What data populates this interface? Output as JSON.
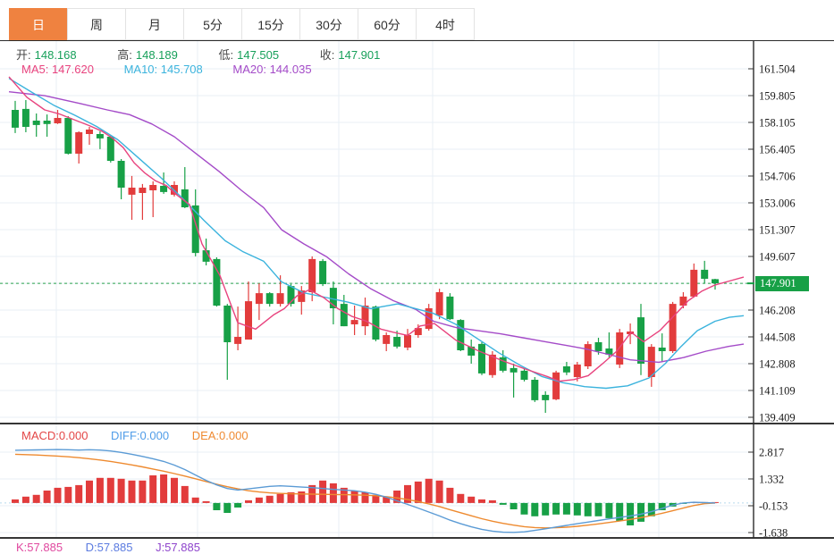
{
  "tabs": {
    "day": "日",
    "week": "周",
    "month": "月",
    "m5": "5分",
    "m15": "15分",
    "m30": "30分",
    "m60": "60分",
    "h4": "4时"
  },
  "ohlc_row": {
    "open_label": "开:",
    "open": "148.168",
    "high_label": "高:",
    "high": "148.189",
    "low_label": "低:",
    "low": "147.505",
    "close_label": "收:",
    "close": "147.901"
  },
  "ma_row": {
    "ma5": "MA5: 147.620",
    "ma10": "MA10: 145.708",
    "ma20": "MA20: 144.035"
  },
  "macd_row": {
    "macd": "MACD:0.000",
    "diff": "DIFF:0.000",
    "dea": "DEA:0.000"
  },
  "kdj_row": {
    "k": "K:57.885",
    "d": "D:57.885",
    "j": "J:57.885"
  },
  "price_badge": "147.901",
  "colors": {
    "up": "#e23c3c",
    "down": "#17a046",
    "ma5": "#e8437e",
    "ma10": "#3bb3dd",
    "ma20": "#a44bc8",
    "diff": "#5b9bd5",
    "dea": "#ee8a2f",
    "grid": "#e9eff5",
    "axis": "#2b2b2b",
    "dashed_price": "#27a24d",
    "macd_zero": "#b8d9ec",
    "tab_active": "#EF8240"
  },
  "chart_data": {
    "type": "candlestick+macd",
    "last_price": 147.901,
    "price_axis": {
      "ticks": [
        161.504,
        159.805,
        158.105,
        156.405,
        154.706,
        153.006,
        151.307,
        149.607,
        147.901,
        146.208,
        144.508,
        142.808,
        141.109,
        139.409
      ],
      "badge_value": 147.901
    },
    "macd_axis": {
      "ticks": [
        2.817,
        1.332,
        -0.153,
        -1.638
      ]
    },
    "grid": {
      "vlines": [
        63,
        221,
        379,
        484,
        642,
        737
      ]
    },
    "candles": [
      [
        158.9,
        159.47,
        157.43,
        157.77
      ],
      [
        158.96,
        159.52,
        157.48,
        157.82
      ],
      [
        158.22,
        158.67,
        157.2,
        157.94
      ],
      [
        158.22,
        158.61,
        157.2,
        158.0
      ],
      [
        158.05,
        158.9,
        158.0,
        158.39
      ],
      [
        158.39,
        158.5,
        156.07,
        156.12
      ],
      [
        156.12,
        157.54,
        155.5,
        157.48
      ],
      [
        157.37,
        157.82,
        156.69,
        157.65
      ],
      [
        157.37,
        157.54,
        156.41,
        157.09
      ],
      [
        157.2,
        157.26,
        155.56,
        155.67
      ],
      [
        155.67,
        155.78,
        153.23,
        153.97
      ],
      [
        153.52,
        154.71,
        151.93,
        153.97
      ],
      [
        153.63,
        154.2,
        151.93,
        153.97
      ],
      [
        153.8,
        154.37,
        152.1,
        154.14
      ],
      [
        154.08,
        154.93,
        153.58,
        153.69
      ],
      [
        153.52,
        154.37,
        153.41,
        154.14
      ],
      [
        153.86,
        155.27,
        152.67,
        152.72
      ],
      [
        152.84,
        153.86,
        149.61,
        149.83
      ],
      [
        150.0,
        150.74,
        149.04,
        149.27
      ],
      [
        149.44,
        149.55,
        146.43,
        146.49
      ],
      [
        146.49,
        146.6,
        141.79,
        144.17
      ],
      [
        144.06,
        146.43,
        143.66,
        144.51
      ],
      [
        144.34,
        148.02,
        144.34,
        146.77
      ],
      [
        146.6,
        147.9,
        145.58,
        147.28
      ],
      [
        147.28,
        147.34,
        146.43,
        146.6
      ],
      [
        146.6,
        148.41,
        146.43,
        147.28
      ],
      [
        147.73,
        147.85,
        146.43,
        146.6
      ],
      [
        146.72,
        147.73,
        145.92,
        147.45
      ],
      [
        147.34,
        149.61,
        146.77,
        149.44
      ],
      [
        149.32,
        149.44,
        147.73,
        147.85
      ],
      [
        147.62,
        148.02,
        145.3,
        146.32
      ],
      [
        146.6,
        147.17,
        145.18,
        145.18
      ],
      [
        145.3,
        146.49,
        144.62,
        145.58
      ],
      [
        145.18,
        147.0,
        144.62,
        146.49
      ],
      [
        146.43,
        146.49,
        144.23,
        144.34
      ],
      [
        144.06,
        144.79,
        143.6,
        144.62
      ],
      [
        144.51,
        144.9,
        143.77,
        143.89
      ],
      [
        143.83,
        145.01,
        143.66,
        144.62
      ],
      [
        144.62,
        145.3,
        144.45,
        145.07
      ],
      [
        145.01,
        146.6,
        144.9,
        146.32
      ],
      [
        145.86,
        147.56,
        145.63,
        147.34
      ],
      [
        147.06,
        147.28,
        145.58,
        145.63
      ],
      [
        145.58,
        145.63,
        143.6,
        143.66
      ],
      [
        143.89,
        144.34,
        142.81,
        143.32
      ],
      [
        144.06,
        144.17,
        142.08,
        142.19
      ],
      [
        142.08,
        143.6,
        141.91,
        143.38
      ],
      [
        143.21,
        143.66,
        142.25,
        142.36
      ],
      [
        142.53,
        142.81,
        140.66,
        142.25
      ],
      [
        142.36,
        142.47,
        141.68,
        141.79
      ],
      [
        141.79,
        141.96,
        140.38,
        140.49
      ],
      [
        140.83,
        141.06,
        139.69,
        140.49
      ],
      [
        140.55,
        142.36,
        140.49,
        142.25
      ],
      [
        142.64,
        142.92,
        142.08,
        142.25
      ],
      [
        141.96,
        142.92,
        141.68,
        142.75
      ],
      [
        142.64,
        144.23,
        142.47,
        144.05
      ],
      [
        144.17,
        144.45,
        143.38,
        143.6
      ],
      [
        143.77,
        144.79,
        143.21,
        143.38
      ],
      [
        142.75,
        145.01,
        142.53,
        144.79
      ],
      [
        144.68,
        145.36,
        144.05,
        144.85
      ],
      [
        145.75,
        146.6,
        142.08,
        142.81
      ],
      [
        141.96,
        144.05,
        141.34,
        143.88
      ],
      [
        143.83,
        144.73,
        142.92,
        143.6
      ],
      [
        143.6,
        146.72,
        143.49,
        146.6
      ],
      [
        146.49,
        147.34,
        146.32,
        147.06
      ],
      [
        147.06,
        149.16,
        147.0,
        148.76
      ],
      [
        148.76,
        149.33,
        147.91,
        148.19
      ],
      [
        148.168,
        148.189,
        147.505,
        147.901
      ]
    ],
    "ma5_points": [
      [
        10,
        161.0
      ],
      [
        30,
        159.7
      ],
      [
        50,
        158.9
      ],
      [
        66,
        158.65
      ],
      [
        82,
        158.3
      ],
      [
        100,
        157.9
      ],
      [
        114,
        157.55
      ],
      [
        126,
        157.1
      ],
      [
        138,
        156.5
      ],
      [
        150,
        155.55
      ],
      [
        162,
        154.9
      ],
      [
        174,
        154.4
      ],
      [
        186,
        154.1
      ],
      [
        198,
        153.5
      ],
      [
        212,
        152.9
      ],
      [
        226,
        150.4
      ],
      [
        246,
        148.4
      ],
      [
        266,
        145.4
      ],
      [
        286,
        145.0
      ],
      [
        306,
        145.9
      ],
      [
        318,
        146.3
      ],
      [
        332,
        147.1
      ],
      [
        346,
        147.5
      ],
      [
        362,
        147.0
      ],
      [
        378,
        146.3
      ],
      [
        394,
        145.8
      ],
      [
        410,
        145.5
      ],
      [
        426,
        145.0
      ],
      [
        440,
        144.8
      ],
      [
        456,
        144.6
      ],
      [
        470,
        145.2
      ],
      [
        486,
        145.35
      ],
      [
        510,
        144.3
      ],
      [
        536,
        143.6
      ],
      [
        562,
        143.0
      ],
      [
        586,
        142.5
      ],
      [
        612,
        142.0
      ],
      [
        626,
        141.7
      ],
      [
        642,
        141.8
      ],
      [
        658,
        142.05
      ],
      [
        674,
        142.8
      ],
      [
        690,
        143.6
      ],
      [
        706,
        144.8
      ],
      [
        720,
        144.2
      ],
      [
        738,
        144.9
      ],
      [
        755,
        145.9
      ],
      [
        770,
        146.8
      ],
      [
        785,
        147.4
      ],
      [
        800,
        147.8
      ],
      [
        816,
        148.05
      ],
      [
        832,
        148.3
      ]
    ],
    "ma10_points": [
      [
        10,
        160.9
      ],
      [
        36,
        160.0
      ],
      [
        60,
        159.2
      ],
      [
        84,
        158.55
      ],
      [
        108,
        157.85
      ],
      [
        132,
        157.0
      ],
      [
        156,
        155.8
      ],
      [
        180,
        154.6
      ],
      [
        204,
        153.3
      ],
      [
        228,
        151.9
      ],
      [
        252,
        150.6
      ],
      [
        272,
        149.9
      ],
      [
        295,
        149.3
      ],
      [
        315,
        148.0
      ],
      [
        340,
        147.3
      ],
      [
        365,
        147.0
      ],
      [
        390,
        146.7
      ],
      [
        415,
        146.3
      ],
      [
        445,
        146.6
      ],
      [
        465,
        146.3
      ],
      [
        485,
        146.0
      ],
      [
        510,
        145.3
      ],
      [
        534,
        144.4
      ],
      [
        558,
        143.5
      ],
      [
        582,
        142.7
      ],
      [
        606,
        142.0
      ],
      [
        630,
        141.6
      ],
      [
        654,
        141.35
      ],
      [
        678,
        141.25
      ],
      [
        702,
        141.4
      ],
      [
        726,
        141.9
      ],
      [
        744,
        142.8
      ],
      [
        762,
        143.9
      ],
      [
        780,
        144.9
      ],
      [
        800,
        145.5
      ],
      [
        816,
        145.75
      ],
      [
        832,
        145.85
      ]
    ],
    "ma20_points": [
      [
        10,
        160.05
      ],
      [
        50,
        159.8
      ],
      [
        90,
        159.3
      ],
      [
        120,
        158.9
      ],
      [
        145,
        158.6
      ],
      [
        170,
        158.0
      ],
      [
        195,
        157.2
      ],
      [
        220,
        156.1
      ],
      [
        245,
        155.0
      ],
      [
        270,
        153.8
      ],
      [
        295,
        152.7
      ],
      [
        315,
        151.3
      ],
      [
        340,
        150.4
      ],
      [
        365,
        149.6
      ],
      [
        390,
        148.5
      ],
      [
        415,
        147.55
      ],
      [
        440,
        146.8
      ],
      [
        465,
        146.25
      ],
      [
        485,
        145.5
      ],
      [
        510,
        145.1
      ],
      [
        535,
        144.9
      ],
      [
        560,
        144.7
      ],
      [
        585,
        144.45
      ],
      [
        610,
        144.2
      ],
      [
        635,
        143.95
      ],
      [
        655,
        143.75
      ],
      [
        680,
        143.4
      ],
      [
        705,
        143.05
      ],
      [
        737,
        142.9
      ],
      [
        765,
        143.2
      ],
      [
        790,
        143.6
      ],
      [
        815,
        143.9
      ],
      [
        832,
        144.05
      ]
    ],
    "macd_hist": [
      0.2,
      0.35,
      0.45,
      0.69,
      0.84,
      0.89,
      0.99,
      1.24,
      1.39,
      1.39,
      1.34,
      1.24,
      1.24,
      1.53,
      1.58,
      1.39,
      0.94,
      0.3,
      0.1,
      -0.4,
      -0.55,
      -0.25,
      0.15,
      0.3,
      0.4,
      0.5,
      0.59,
      0.64,
      0.99,
      1.24,
      1.09,
      0.84,
      0.69,
      0.59,
      0.45,
      0.35,
      0.69,
      0.99,
      1.19,
      1.34,
      1.24,
      0.84,
      0.5,
      0.35,
      0.2,
      0.15,
      -0.1,
      -0.35,
      -0.64,
      -0.74,
      -0.69,
      -0.64,
      -0.64,
      -0.69,
      -0.74,
      -0.74,
      -0.84,
      -0.99,
      -1.24,
      -1.04,
      -0.74,
      -0.4,
      -0.2,
      -0.05,
      0.02,
      0.05,
      0.0
    ],
    "diff_line": [
      2.92,
      2.93,
      2.94,
      2.95,
      2.96,
      2.95,
      2.93,
      2.95,
      2.93,
      2.88,
      2.8,
      2.7,
      2.58,
      2.45,
      2.3,
      2.1,
      1.85,
      1.55,
      1.25,
      1.0,
      0.8,
      0.72,
      0.78,
      0.85,
      0.92,
      0.95,
      0.92,
      0.88,
      0.85,
      0.8,
      0.75,
      0.72,
      0.68,
      0.6,
      0.48,
      0.32,
      0.12,
      -0.08,
      -0.28,
      -0.5,
      -0.72,
      -0.95,
      -1.15,
      -1.32,
      -1.46,
      -1.56,
      -1.62,
      -1.63,
      -1.6,
      -1.52,
      -1.43,
      -1.33,
      -1.24,
      -1.15,
      -1.06,
      -0.97,
      -0.88,
      -0.8,
      -0.72,
      -0.62,
      -0.48,
      -0.3,
      -0.12,
      0.0,
      0.04,
      0.02,
      0.0
    ],
    "dea_line": [
      2.7,
      2.68,
      2.66,
      2.63,
      2.6,
      2.56,
      2.51,
      2.45,
      2.38,
      2.3,
      2.21,
      2.11,
      2.0,
      1.88,
      1.76,
      1.63,
      1.49,
      1.34,
      1.19,
      1.04,
      0.9,
      0.78,
      0.68,
      0.61,
      0.56,
      0.53,
      0.51,
      0.5,
      0.49,
      0.48,
      0.47,
      0.46,
      0.45,
      0.43,
      0.4,
      0.35,
      0.28,
      0.19,
      0.08,
      -0.05,
      -0.2,
      -0.37,
      -0.54,
      -0.71,
      -0.87,
      -1.01,
      -1.13,
      -1.23,
      -1.31,
      -1.36,
      -1.38,
      -1.37,
      -1.34,
      -1.29,
      -1.23,
      -1.16,
      -1.08,
      -1.0,
      -0.91,
      -0.81,
      -0.7,
      -0.57,
      -0.43,
      -0.28,
      -0.14,
      -0.04,
      0.0
    ]
  }
}
